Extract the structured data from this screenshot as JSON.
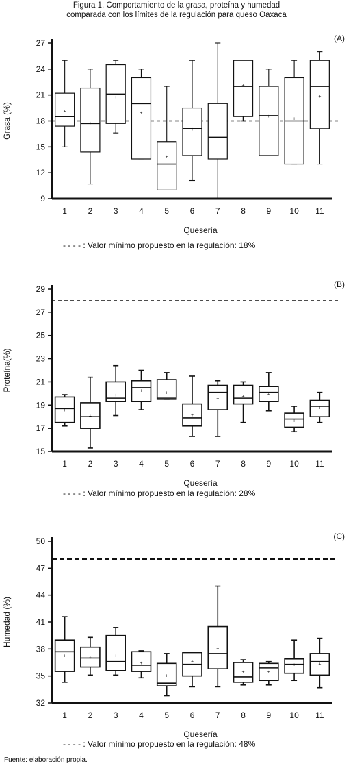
{
  "title_line1": "Figura 1. Comportamiento de la grasa, proteína y humedad",
  "title_line2": "comparada con los límites de la regulación para queso Oaxaca",
  "source": "Fuente: elaboración propia.",
  "chart_data": [
    {
      "type": "box",
      "panel": "(A)",
      "xlabel": "Quesería",
      "ylabel": "Grasa (%)",
      "categories": [
        "1",
        "2",
        "3",
        "4",
        "5",
        "6",
        "7",
        "8",
        "9",
        "10",
        "11"
      ],
      "ylim": [
        9,
        27
      ],
      "yticks": [
        9,
        12,
        15,
        18,
        21,
        24,
        27
      ],
      "reference_line": 18,
      "legend": "- - - - : Valor mínimo propuesto en la regulación: 18%",
      "boxes": [
        {
          "min": 15.0,
          "q1": 17.4,
          "median": 18.5,
          "q3": 21.2,
          "max": 25.0,
          "mean": 19.2
        },
        {
          "min": 10.7,
          "q1": 14.4,
          "median": 17.7,
          "q3": 21.8,
          "max": 24.0,
          "mean": 17.8
        },
        {
          "min": 16.6,
          "q1": 17.7,
          "median": 21.1,
          "q3": 24.5,
          "max": 25.0,
          "mean": 20.8
        },
        {
          "min": 13.6,
          "q1": 13.6,
          "median": 20.0,
          "q3": 23.0,
          "max": 24.0,
          "mean": 19.0
        },
        {
          "min": 10.0,
          "q1": 10.0,
          "median": 13.0,
          "q3": 15.6,
          "max": 22.0,
          "mean": 13.9
        },
        {
          "min": 11.1,
          "q1": 14.0,
          "median": 17.1,
          "q3": 19.5,
          "max": 25.0,
          "mean": 17.1
        },
        {
          "min": 9.0,
          "q1": 13.6,
          "median": 16.1,
          "q3": 20.0,
          "max": 27.0,
          "mean": 16.8
        },
        {
          "min": 18.0,
          "q1": 18.5,
          "median": 22.0,
          "q3": 25.0,
          "max": 25.0,
          "mean": 22.2
        },
        {
          "min": 14.0,
          "q1": 14.0,
          "median": 18.6,
          "q3": 22.0,
          "max": 24.0,
          "mean": 18.6
        },
        {
          "min": 13.0,
          "q1": 13.0,
          "median": 18.0,
          "q3": 23.0,
          "max": 25.0,
          "mean": 18.3
        },
        {
          "min": 13.0,
          "q1": 17.1,
          "median": 22.0,
          "q3": 25.0,
          "max": 26.0,
          "mean": 20.9
        }
      ]
    },
    {
      "type": "box",
      "panel": "(B)",
      "xlabel": "Quesería",
      "ylabel": "Proteína(%)",
      "categories": [
        "1",
        "2",
        "3",
        "4",
        "5",
        "6",
        "7",
        "8",
        "9",
        "10",
        "11"
      ],
      "ylim": [
        15,
        29
      ],
      "yticks": [
        15,
        17,
        19,
        21,
        23,
        25,
        27,
        29
      ],
      "reference_line": 28,
      "legend": "- - - - : Valor mínimo propuesto en la regulación: 28%",
      "boxes": [
        {
          "min": 17.2,
          "q1": 17.5,
          "median": 18.7,
          "q3": 19.7,
          "max": 19.9,
          "mean": 18.6
        },
        {
          "min": 15.3,
          "q1": 17.0,
          "median": 18.0,
          "q3": 19.2,
          "max": 21.4,
          "mean": 18.1
        },
        {
          "min": 18.1,
          "q1": 19.3,
          "median": 19.6,
          "q3": 21.0,
          "max": 22.4,
          "mean": 19.9
        },
        {
          "min": 18.6,
          "q1": 19.3,
          "median": 20.5,
          "q3": 21.1,
          "max": 22.0,
          "mean": 20.3
        },
        {
          "min": 19.5,
          "q1": 19.5,
          "median": 19.6,
          "q3": 21.2,
          "max": 21.8,
          "mean": 20.1
        },
        {
          "min": 16.3,
          "q1": 17.2,
          "median": 17.9,
          "q3": 19.1,
          "max": 21.5,
          "mean": 18.2
        },
        {
          "min": 16.3,
          "q1": 18.6,
          "median": 20.1,
          "q3": 20.7,
          "max": 21.1,
          "mean": 19.6
        },
        {
          "min": 17.5,
          "q1": 19.1,
          "median": 19.6,
          "q3": 20.7,
          "max": 21.0,
          "mean": 19.8
        },
        {
          "min": 18.5,
          "q1": 19.3,
          "median": 20.1,
          "q3": 20.6,
          "max": 21.8,
          "mean": 20.0
        },
        {
          "min": 16.7,
          "q1": 17.1,
          "median": 17.8,
          "q3": 18.3,
          "max": 18.9,
          "mean": 17.7
        },
        {
          "min": 17.5,
          "q1": 18.0,
          "median": 18.9,
          "q3": 19.4,
          "max": 20.1,
          "mean": 18.8
        }
      ]
    },
    {
      "type": "box",
      "panel": "(C)",
      "xlabel": "Quesería",
      "ylabel": "Humedad (%)",
      "categories": [
        "1",
        "2",
        "3",
        "4",
        "5",
        "6",
        "7",
        "8",
        "9",
        "10",
        "11"
      ],
      "ylim": [
        32,
        50
      ],
      "yticks": [
        32,
        35,
        38,
        41,
        44,
        47,
        50
      ],
      "reference_line": 48,
      "legend": "- - - - : Valor mínimo propuesto en la regulación: 48%",
      "boxes": [
        {
          "min": 34.3,
          "q1": 35.5,
          "median": 37.7,
          "q3": 39.0,
          "max": 41.6,
          "mean": 37.3
        },
        {
          "min": 35.1,
          "q1": 36.0,
          "median": 37.0,
          "q3": 38.2,
          "max": 39.3,
          "mean": 37.1
        },
        {
          "min": 35.1,
          "q1": 35.6,
          "median": 36.6,
          "q3": 39.5,
          "max": 40.4,
          "mean": 37.3
        },
        {
          "min": 34.8,
          "q1": 35.5,
          "median": 36.2,
          "q3": 37.7,
          "max": 37.8,
          "mean": 36.5
        },
        {
          "min": 32.8,
          "q1": 33.9,
          "median": 34.2,
          "q3": 36.4,
          "max": 37.5,
          "mean": 35.1
        },
        {
          "min": 33.8,
          "q1": 35.0,
          "median": 36.3,
          "q3": 37.6,
          "max": 37.6,
          "mean": 36.7
        },
        {
          "min": 33.8,
          "q1": 35.8,
          "median": 37.5,
          "q3": 40.5,
          "max": 45.0,
          "mean": 38.1
        },
        {
          "min": 34.0,
          "q1": 34.3,
          "median": 34.9,
          "q3": 36.5,
          "max": 36.8,
          "mean": 35.5
        },
        {
          "min": 34.0,
          "q1": 34.5,
          "median": 35.9,
          "q3": 36.4,
          "max": 36.6,
          "mean": 35.5
        },
        {
          "min": 34.5,
          "q1": 35.3,
          "median": 36.3,
          "q3": 36.9,
          "max": 39.0,
          "mean": 36.3
        },
        {
          "min": 33.7,
          "q1": 35.1,
          "median": 36.6,
          "q3": 37.5,
          "max": 39.2,
          "mean": 36.4
        }
      ]
    }
  ]
}
